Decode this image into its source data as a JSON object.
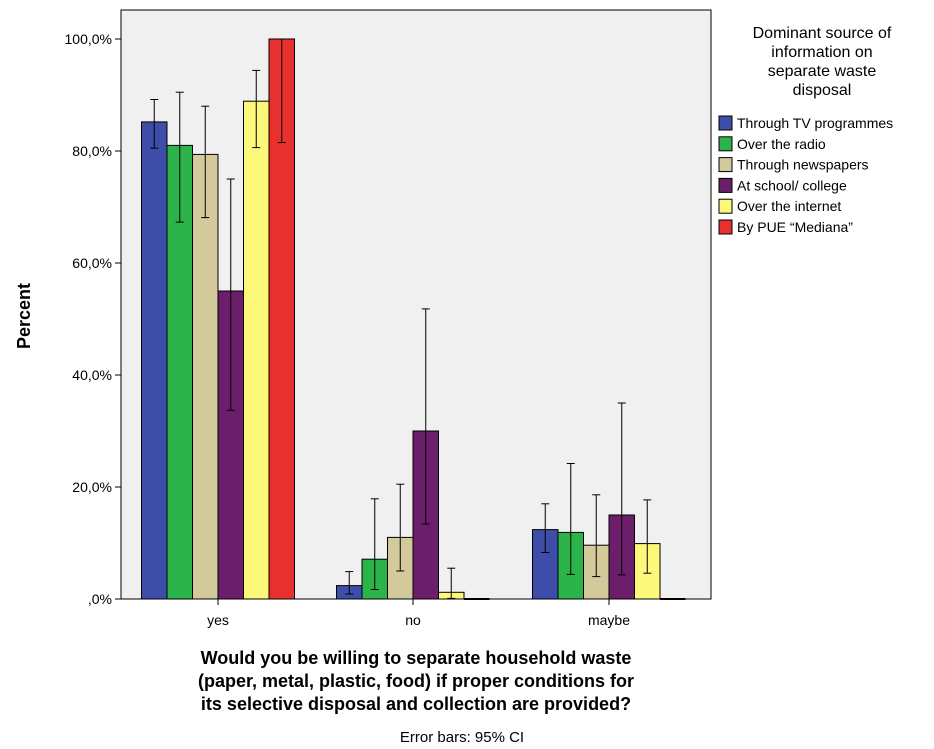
{
  "chart_data": {
    "type": "bar",
    "categories": [
      "yes",
      "no",
      "maybe"
    ],
    "ylabel": "Percent",
    "xlabel_lines": [
      "Would you be willing to separate household waste",
      "(paper, metal, plastic, food) if proper conditions for",
      "its selective disposal and collection are provided?"
    ],
    "ylim": [
      0,
      100
    ],
    "yticks": [
      0,
      20,
      40,
      60,
      80,
      100
    ],
    "ytick_labels": [
      ",0%",
      "20,0%",
      "40,0%",
      "60,0%",
      "80,0%",
      "100,0%"
    ],
    "legend_title_lines": [
      "Dominant source of",
      "information on",
      "separate waste",
      "disposal"
    ],
    "legend_position": "right",
    "grid": false,
    "note": "Error bars: 95% CI",
    "series": [
      {
        "name": "Through TV programmes",
        "color": "#3e4ea8",
        "values": [
          85.2,
          2.4,
          12.4
        ],
        "ci_low": [
          80.5,
          0.9,
          8.3
        ],
        "ci_high": [
          89.2,
          4.9,
          17.0
        ]
      },
      {
        "name": "Over the radio",
        "color": "#2cb34a",
        "values": [
          81.0,
          7.1,
          11.9
        ],
        "ci_low": [
          67.3,
          1.7,
          4.4
        ],
        "ci_high": [
          90.5,
          17.9,
          24.2
        ]
      },
      {
        "name": "Through newspapers",
        "color": "#d4c99a",
        "values": [
          79.4,
          11.0,
          9.6
        ],
        "ci_low": [
          68.1,
          5.0,
          4.0
        ],
        "ci_high": [
          88.0,
          20.5,
          18.6
        ]
      },
      {
        "name": "At school/ college",
        "color": "#6b1f6b",
        "values": [
          55.0,
          30.0,
          15.0
        ],
        "ci_low": [
          33.7,
          13.4,
          4.3
        ],
        "ci_high": [
          75.0,
          51.8,
          35.0
        ]
      },
      {
        "name": "Over the internet",
        "color": "#fbf87a",
        "values": [
          88.9,
          1.2,
          9.9
        ],
        "ci_low": [
          80.6,
          0.1,
          4.6
        ],
        "ci_high": [
          94.4,
          5.5,
          17.7
        ]
      },
      {
        "name": "By PUE “Mediana”",
        "color": "#e8312f",
        "values": [
          100.0,
          0.0,
          0.0
        ],
        "ci_low": [
          81.5,
          0.0,
          0.0
        ],
        "ci_high": [
          100.0,
          0.0,
          0.0
        ]
      }
    ]
  }
}
